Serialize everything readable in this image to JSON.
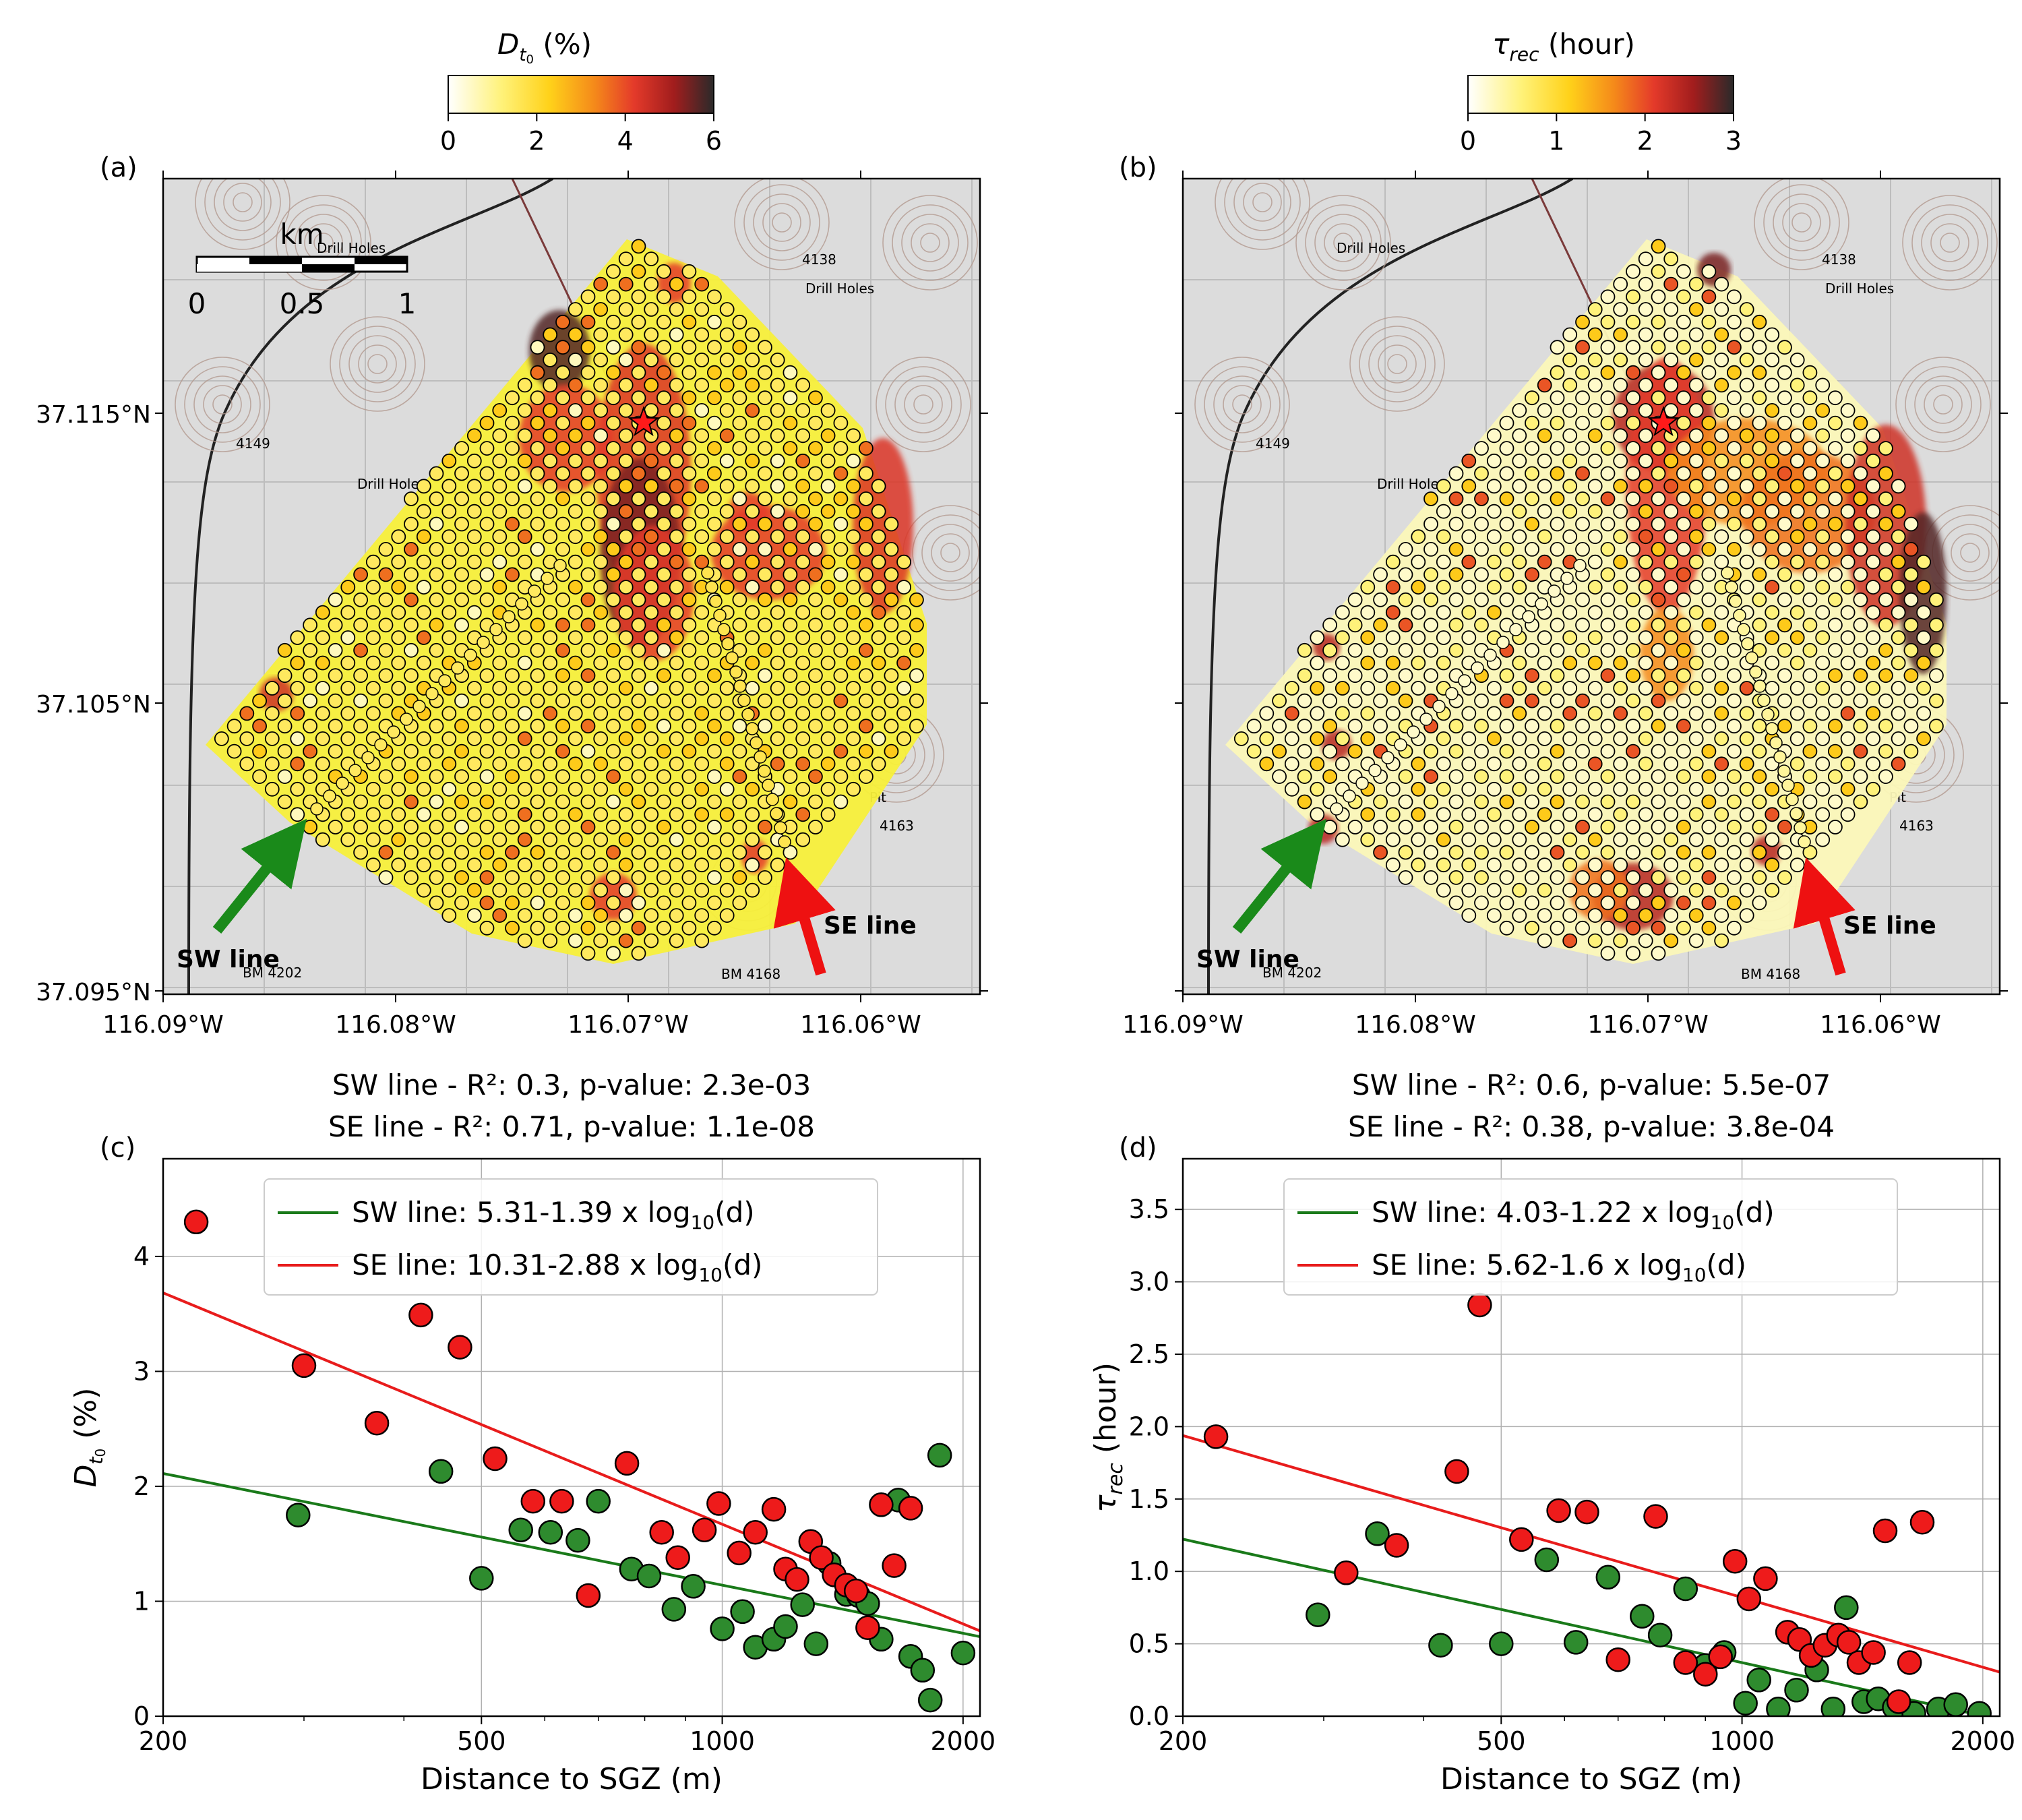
{
  "panels": {
    "a": {
      "letter": "(a)",
      "colorbar": {
        "label": "D_t0 (%)",
        "ticks": [
          "0",
          "2",
          "4",
          "6"
        ],
        "range": [
          0,
          6
        ]
      },
      "scalebar": {
        "unit": "km",
        "ticks": [
          "0",
          "0.5",
          "1"
        ]
      },
      "lat_ticks": [
        "37.115°N",
        "37.105°N",
        "37.095°N"
      ],
      "lon_ticks": [
        "116.09°W",
        "116.08°W",
        "116.07°W",
        "116.06°W"
      ],
      "sw_label": "SW line",
      "se_label": "SE line"
    },
    "b": {
      "letter": "(b)",
      "colorbar": {
        "label": "τ_rec (hour)",
        "ticks": [
          "0",
          "1",
          "2",
          "3"
        ],
        "range": [
          0,
          3
        ]
      },
      "lat_ticks": [
        "37.115°N",
        "37.105°N",
        "37.095°N"
      ],
      "lon_ticks": [
        "116.09°W",
        "116.08°W",
        "116.07°W",
        "116.06°W"
      ],
      "sw_label": "SW line",
      "se_label": "SE line"
    },
    "c": {
      "letter": "(c)",
      "title_line1": "SW line - R²: 0.3, p-value: 2.3e-03",
      "title_line2": "SE line - R²: 0.71, p-value: 1.1e-08",
      "legend": [
        "SW line: 5.31-1.39 x log10(d)",
        "SE line: 10.31-2.88 x log10(d)"
      ]
    },
    "d": {
      "letter": "(d)",
      "title_line1": "SW line - R²: 0.6, p-value: 5.5e-07",
      "title_line2": "SE line - R²: 0.38, p-value: 3.8e-04",
      "legend": [
        "SW line: 4.03-1.22 x log10(d)",
        "SE line: 5.62-1.6 x log10(d)"
      ]
    }
  },
  "map_labels": [
    "Drill Holes",
    "Drill Holes",
    "Drill Holes",
    "BM 4202",
    "BM 4168",
    "4138",
    "4149",
    "4163",
    "Pit"
  ],
  "colors": {
    "sw": "#1a7a1a",
    "se": "#e81c1c",
    "sw_point": "#2e8b2e",
    "se_point": "#ee1b1b"
  },
  "chart_data": [
    {
      "panel": "c",
      "type": "scatter",
      "xlabel": "Distance to SGZ (m)",
      "ylabel": "D_t0 (%)",
      "xscale": "log",
      "xlim": [
        200,
        2100
      ],
      "ylim": [
        0,
        4.85
      ],
      "xticks": [
        200,
        500,
        1000,
        2000
      ],
      "yticks": [
        0,
        1,
        2,
        3,
        4
      ],
      "grid": true,
      "legend_position": "top-center",
      "series": [
        {
          "name": "SW line",
          "fit": {
            "a": 5.31,
            "b": -1.39
          },
          "points": [
            [
              295,
              1.75
            ],
            [
              445,
              2.13
            ],
            [
              500,
              1.2
            ],
            [
              560,
              1.62
            ],
            [
              610,
              1.6
            ],
            [
              660,
              1.53
            ],
            [
              700,
              1.87
            ],
            [
              770,
              1.28
            ],
            [
              810,
              1.22
            ],
            [
              870,
              0.93
            ],
            [
              920,
              1.13
            ],
            [
              1000,
              0.76
            ],
            [
              1060,
              0.91
            ],
            [
              1100,
              0.6
            ],
            [
              1160,
              0.67
            ],
            [
              1200,
              0.78
            ],
            [
              1260,
              0.97
            ],
            [
              1310,
              0.63
            ],
            [
              1360,
              1.33
            ],
            [
              1430,
              1.06
            ],
            [
              1480,
              1.05
            ],
            [
              1520,
              0.98
            ],
            [
              1580,
              0.67
            ],
            [
              1660,
              1.88
            ],
            [
              1720,
              0.52
            ],
            [
              1780,
              0.4
            ],
            [
              1820,
              0.14
            ],
            [
              1870,
              2.27
            ],
            [
              2000,
              0.55
            ]
          ]
        },
        {
          "name": "SE line",
          "fit": {
            "a": 10.31,
            "b": -2.88
          },
          "points": [
            [
              220,
              4.3
            ],
            [
              300,
              3.05
            ],
            [
              370,
              2.55
            ],
            [
              420,
              3.49
            ],
            [
              470,
              3.21
            ],
            [
              520,
              2.24
            ],
            [
              580,
              1.87
            ],
            [
              630,
              1.87
            ],
            [
              680,
              1.05
            ],
            [
              760,
              2.2
            ],
            [
              840,
              1.6
            ],
            [
              880,
              1.38
            ],
            [
              950,
              1.62
            ],
            [
              990,
              1.85
            ],
            [
              1050,
              1.42
            ],
            [
              1100,
              1.6
            ],
            [
              1160,
              1.8
            ],
            [
              1200,
              1.28
            ],
            [
              1240,
              1.19
            ],
            [
              1290,
              1.52
            ],
            [
              1330,
              1.38
            ],
            [
              1380,
              1.23
            ],
            [
              1430,
              1.14
            ],
            [
              1470,
              1.09
            ],
            [
              1520,
              0.77
            ],
            [
              1580,
              1.84
            ],
            [
              1640,
              1.31
            ],
            [
              1720,
              1.81
            ]
          ]
        }
      ]
    },
    {
      "panel": "d",
      "type": "scatter",
      "xlabel": "Distance to SGZ (m)",
      "ylabel": "τ_rec (hour)",
      "xscale": "log",
      "xlim": [
        200,
        2100
      ],
      "ylim": [
        0,
        3.85
      ],
      "xticks": [
        200,
        500,
        1000,
        2000
      ],
      "yticks": [
        0.0,
        0.5,
        1.0,
        1.5,
        2.0,
        2.5,
        3.0,
        3.5
      ],
      "grid": true,
      "legend_position": "top-center",
      "series": [
        {
          "name": "SW line",
          "fit": {
            "a": 4.03,
            "b": -1.22
          },
          "points": [
            [
              295,
              0.7
            ],
            [
              350,
              1.26
            ],
            [
              420,
              0.49
            ],
            [
              500,
              0.5
            ],
            [
              570,
              1.08
            ],
            [
              620,
              0.51
            ],
            [
              680,
              0.96
            ],
            [
              750,
              0.69
            ],
            [
              790,
              0.56
            ],
            [
              850,
              0.88
            ],
            [
              900,
              0.35
            ],
            [
              950,
              0.44
            ],
            [
              1010,
              0.09
            ],
            [
              1050,
              0.25
            ],
            [
              1110,
              0.05
            ],
            [
              1170,
              0.18
            ],
            [
              1240,
              0.32
            ],
            [
              1300,
              0.05
            ],
            [
              1350,
              0.75
            ],
            [
              1420,
              0.1
            ],
            [
              1480,
              0.12
            ],
            [
              1550,
              0.06
            ],
            [
              1640,
              0.02
            ],
            [
              1760,
              0.05
            ],
            [
              1850,
              0.08
            ],
            [
              1980,
              0.02
            ]
          ]
        },
        {
          "name": "SE line",
          "fit": {
            "a": 5.62,
            "b": -1.6
          },
          "points": [
            [
              220,
              1.93
            ],
            [
              320,
              0.99
            ],
            [
              370,
              1.18
            ],
            [
              440,
              1.69
            ],
            [
              470,
              2.84
            ],
            [
              530,
              1.22
            ],
            [
              590,
              1.42
            ],
            [
              640,
              1.41
            ],
            [
              700,
              0.39
            ],
            [
              780,
              1.38
            ],
            [
              850,
              0.37
            ],
            [
              900,
              0.29
            ],
            [
              940,
              0.41
            ],
            [
              980,
              1.07
            ],
            [
              1020,
              0.81
            ],
            [
              1070,
              0.95
            ],
            [
              1140,
              0.58
            ],
            [
              1180,
              0.53
            ],
            [
              1220,
              0.42
            ],
            [
              1270,
              0.49
            ],
            [
              1320,
              0.56
            ],
            [
              1360,
              0.51
            ],
            [
              1400,
              0.37
            ],
            [
              1460,
              0.44
            ],
            [
              1510,
              1.28
            ],
            [
              1570,
              0.1
            ],
            [
              1620,
              0.37
            ],
            [
              1680,
              1.34
            ]
          ]
        }
      ]
    }
  ]
}
